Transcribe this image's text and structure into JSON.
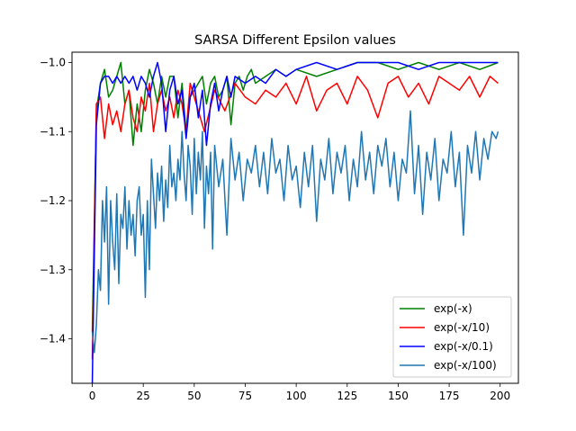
{
  "chart_data": {
    "type": "line",
    "title": "SARSA Different Epsilon values",
    "xlabel": "",
    "ylabel": "",
    "xlim": [
      -9.95,
      208.95
    ],
    "ylim": [
      -1.4645,
      -0.985
    ],
    "xticks": [
      0,
      25,
      50,
      75,
      100,
      125,
      150,
      175,
      200
    ],
    "xtick_labels": [
      "0",
      "25",
      "50",
      "75",
      "100",
      "125",
      "150",
      "175",
      "200"
    ],
    "yticks": [
      -1.4,
      -1.3,
      -1.2,
      -1.1,
      -1.0
    ],
    "ytick_labels": [
      "−1.4",
      "−1.3",
      "−1.2",
      "−1.1",
      "−1.0"
    ],
    "grid": false,
    "legend_position": "lower-right",
    "series": [
      {
        "name": "exp(-x)",
        "color": "#008000",
        "x": [
          0,
          2,
          4,
          6,
          8,
          10,
          12,
          14,
          16,
          18,
          20,
          22,
          24,
          26,
          28,
          30,
          32,
          34,
          36,
          38,
          40,
          42,
          44,
          46,
          48,
          50,
          52,
          54,
          56,
          58,
          60,
          62,
          64,
          66,
          68,
          70,
          72,
          74,
          76,
          78,
          80,
          85,
          90,
          95,
          100,
          110,
          120,
          130,
          140,
          150,
          160,
          170,
          180,
          190,
          199
        ],
        "y": [
          -1.39,
          -1.07,
          -1.03,
          -1.01,
          -1.05,
          -1.04,
          -1.02,
          -1.0,
          -1.06,
          -1.04,
          -1.12,
          -1.06,
          -1.1,
          -1.04,
          -1.01,
          -1.03,
          -1.06,
          -1.02,
          -1.05,
          -1.02,
          -1.02,
          -1.08,
          -1.03,
          -1.1,
          -1.05,
          -1.04,
          -1.03,
          -1.02,
          -1.06,
          -1.03,
          -1.02,
          -1.05,
          -1.04,
          -1.02,
          -1.09,
          -1.03,
          -1.02,
          -1.04,
          -1.02,
          -1.01,
          -1.03,
          -1.02,
          -1.01,
          -1.02,
          -1.01,
          -1.02,
          -1.01,
          -1.0,
          -1.0,
          -1.01,
          -1.0,
          -1.01,
          -1.0,
          -1.01,
          -1.0
        ]
      },
      {
        "name": "exp(-x/10)",
        "color": "#ff0000",
        "x": [
          0,
          2,
          4,
          6,
          8,
          10,
          12,
          14,
          16,
          18,
          20,
          22,
          24,
          26,
          28,
          30,
          32,
          34,
          36,
          38,
          40,
          42,
          44,
          46,
          48,
          50,
          55,
          60,
          65,
          70,
          75,
          80,
          85,
          90,
          95,
          100,
          105,
          110,
          115,
          120,
          125,
          130,
          135,
          140,
          145,
          150,
          155,
          160,
          165,
          170,
          175,
          180,
          185,
          190,
          195,
          199
        ],
        "y": [
          -1.43,
          -1.06,
          -1.05,
          -1.11,
          -1.06,
          -1.09,
          -1.07,
          -1.1,
          -1.06,
          -1.04,
          -1.08,
          -1.1,
          -1.05,
          -1.07,
          -1.03,
          -1.1,
          -1.06,
          -1.04,
          -1.07,
          -1.05,
          -1.08,
          -1.04,
          -1.06,
          -1.1,
          -1.03,
          -1.05,
          -1.1,
          -1.04,
          -1.07,
          -1.03,
          -1.05,
          -1.06,
          -1.04,
          -1.05,
          -1.03,
          -1.06,
          -1.02,
          -1.07,
          -1.04,
          -1.03,
          -1.06,
          -1.02,
          -1.04,
          -1.08,
          -1.03,
          -1.02,
          -1.05,
          -1.03,
          -1.06,
          -1.02,
          -1.03,
          -1.04,
          -1.02,
          -1.05,
          -1.02,
          -1.03
        ]
      },
      {
        "name": "exp(-x/0.1)",
        "color": "#0000ff",
        "x": [
          0,
          2,
          4,
          6,
          8,
          10,
          12,
          14,
          16,
          18,
          20,
          22,
          24,
          26,
          28,
          30,
          32,
          34,
          36,
          38,
          40,
          42,
          44,
          46,
          48,
          50,
          52,
          54,
          56,
          58,
          60,
          62,
          64,
          66,
          68,
          70,
          75,
          80,
          85,
          90,
          95,
          100,
          110,
          120,
          130,
          140,
          150,
          160,
          170,
          180,
          190,
          199
        ],
        "y": [
          -1.465,
          -1.09,
          -1.03,
          -1.02,
          -1.02,
          -1.03,
          -1.02,
          -1.03,
          -1.02,
          -1.03,
          -1.02,
          -1.04,
          -1.02,
          -1.03,
          -1.05,
          -1.02,
          -1.0,
          -1.03,
          -1.1,
          -1.04,
          -1.02,
          -1.06,
          -1.04,
          -1.11,
          -1.05,
          -1.03,
          -1.08,
          -1.04,
          -1.12,
          -1.06,
          -1.03,
          -1.07,
          -1.04,
          -1.02,
          -1.05,
          -1.02,
          -1.03,
          -1.02,
          -1.03,
          -1.01,
          -1.02,
          -1.01,
          -1.0,
          -1.01,
          -1.0,
          -1.0,
          -1.0,
          -1.01,
          -1.0,
          -1.0,
          -1.0,
          -1.0
        ]
      },
      {
        "name": "exp(-x/100)",
        "color": "#1f77b4",
        "x": [
          0,
          1,
          2,
          3,
          4,
          5,
          6,
          7,
          8,
          9,
          10,
          11,
          12,
          13,
          14,
          15,
          16,
          17,
          18,
          19,
          20,
          21,
          22,
          23,
          24,
          25,
          26,
          27,
          28,
          29,
          30,
          31,
          32,
          33,
          34,
          35,
          36,
          37,
          38,
          39,
          40,
          41,
          42,
          43,
          44,
          45,
          46,
          47,
          48,
          49,
          50,
          51,
          52,
          53,
          54,
          55,
          56,
          57,
          58,
          59,
          60,
          62,
          64,
          66,
          68,
          70,
          72,
          74,
          76,
          78,
          80,
          82,
          84,
          86,
          88,
          90,
          92,
          94,
          96,
          98,
          100,
          102,
          104,
          106,
          108,
          110,
          112,
          114,
          116,
          118,
          120,
          122,
          124,
          126,
          128,
          130,
          132,
          134,
          136,
          138,
          140,
          142,
          144,
          146,
          148,
          150,
          152,
          154,
          156,
          158,
          160,
          162,
          164,
          166,
          168,
          170,
          172,
          174,
          176,
          178,
          180,
          182,
          184,
          186,
          188,
          190,
          192,
          194,
          196,
          198,
          199
        ],
        "y": [
          -1.39,
          -1.42,
          -1.38,
          -1.3,
          -1.33,
          -1.2,
          -1.26,
          -1.18,
          -1.35,
          -1.2,
          -1.26,
          -1.3,
          -1.19,
          -1.32,
          -1.22,
          -1.24,
          -1.18,
          -1.27,
          -1.2,
          -1.25,
          -1.22,
          -1.28,
          -1.2,
          -1.18,
          -1.25,
          -1.22,
          -1.34,
          -1.2,
          -1.3,
          -1.14,
          -1.19,
          -1.24,
          -1.16,
          -1.2,
          -1.15,
          -1.23,
          -1.17,
          -1.21,
          -1.12,
          -1.18,
          -1.16,
          -1.2,
          -1.14,
          -1.17,
          -1.1,
          -1.16,
          -1.2,
          -1.12,
          -1.15,
          -1.22,
          -1.11,
          -1.19,
          -1.13,
          -1.17,
          -1.1,
          -1.24,
          -1.15,
          -1.19,
          -1.13,
          -1.27,
          -1.12,
          -1.18,
          -1.14,
          -1.25,
          -1.11,
          -1.17,
          -1.13,
          -1.2,
          -1.14,
          -1.16,
          -1.12,
          -1.18,
          -1.13,
          -1.19,
          -1.11,
          -1.16,
          -1.14,
          -1.2,
          -1.12,
          -1.17,
          -1.15,
          -1.21,
          -1.13,
          -1.18,
          -1.12,
          -1.23,
          -1.14,
          -1.17,
          -1.11,
          -1.19,
          -1.13,
          -1.16,
          -1.12,
          -1.2,
          -1.14,
          -1.18,
          -1.1,
          -1.17,
          -1.13,
          -1.19,
          -1.12,
          -1.15,
          -1.11,
          -1.18,
          -1.13,
          -1.2,
          -1.14,
          -1.16,
          -1.07,
          -1.19,
          -1.12,
          -1.22,
          -1.13,
          -1.17,
          -1.11,
          -1.2,
          -1.14,
          -1.16,
          -1.1,
          -1.18,
          -1.13,
          -1.25,
          -1.12,
          -1.16,
          -1.1,
          -1.17,
          -1.11,
          -1.14,
          -1.1,
          -1.11,
          -1.1
        ]
      }
    ]
  }
}
